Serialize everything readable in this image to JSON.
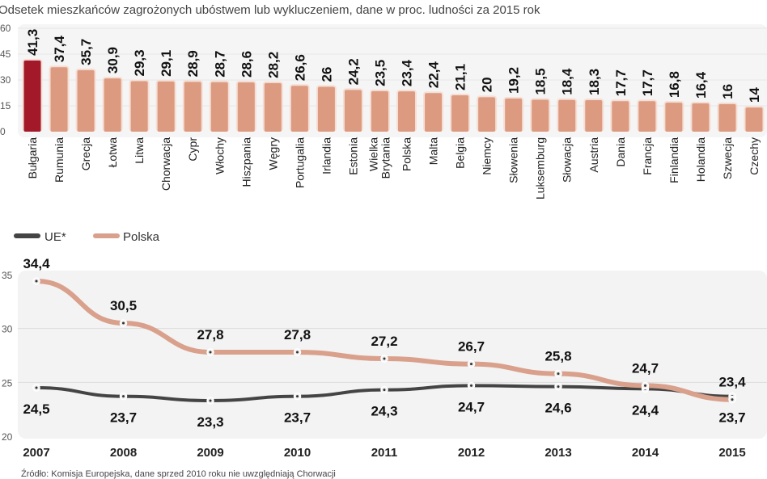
{
  "colors": {
    "highlight": "#a3192a",
    "bar": "#dc9a80",
    "polska_line": "#d9a08c",
    "ue_line": "#444444",
    "panel": "#f3f3f3"
  },
  "chart_data": [
    {
      "type": "bar",
      "title": "Odsetek mieszkańców zagrożonych ubóstwem lub wykluczeniem, dane w proc. ludności za 2015 rok",
      "categories": [
        "Bułgaria",
        "Rumunia",
        "Grecja",
        "Łotwa",
        "Litwa",
        "Chorwacja",
        "Cypr",
        "Włochy",
        "Hiszpania",
        "Węgry",
        "Portugalia",
        "Irlandia",
        "Estonia",
        "Wielka Brytania",
        "Polska",
        "Malta",
        "Belgia",
        "Niemcy",
        "Słowenia",
        "Luksemburg",
        "Słowacja",
        "Austria",
        "Dania",
        "Francja",
        "Finlandia",
        "Holandia",
        "Szwecja",
        "Czechy"
      ],
      "values": [
        41.3,
        37.4,
        35.7,
        30.9,
        29.3,
        29.1,
        28.9,
        28.7,
        28.6,
        28.2,
        26.6,
        26,
        24.2,
        23.5,
        23.4,
        22.4,
        21.1,
        20,
        19.2,
        18.5,
        18.4,
        18.3,
        17.7,
        17.7,
        16.8,
        16.4,
        16,
        14
      ],
      "value_labels": [
        "41,3",
        "37,4",
        "35,7",
        "30,9",
        "29,3",
        "29,1",
        "28,9",
        "28,7",
        "28,6",
        "28,2",
        "26,6",
        "26",
        "24,2",
        "23,5",
        "23,4",
        "22,4",
        "21,1",
        "20",
        "19,2",
        "18,5",
        "18,4",
        "18,3",
        "17,7",
        "17,7",
        "16,8",
        "16,4",
        "16",
        "14"
      ],
      "highlighted": "Bułgaria",
      "ylim": [
        0,
        60
      ],
      "yticks": [
        "0",
        "15",
        "30",
        "45",
        "60"
      ]
    },
    {
      "type": "line",
      "x": [
        "2007",
        "2008",
        "2009",
        "2010",
        "2011",
        "2012",
        "2013",
        "2014",
        "2015"
      ],
      "series": [
        {
          "name": "UE*",
          "values": [
            24.5,
            23.7,
            23.3,
            23.7,
            24.3,
            24.7,
            24.6,
            24.4,
            23.7
          ],
          "labels": [
            "24,5",
            "23,7",
            "23,3",
            "23,7",
            "24,3",
            "24,7",
            "24,6",
            "24,4",
            "23,7"
          ]
        },
        {
          "name": "Polska",
          "values": [
            34.4,
            30.5,
            27.8,
            27.8,
            27.2,
            26.7,
            25.8,
            24.7,
            23.4
          ],
          "labels": [
            "34,4",
            "30,5",
            "27,8",
            "27,8",
            "27,2",
            "26,7",
            "25,8",
            "24,7",
            "23,4"
          ]
        }
      ],
      "ylim": [
        20,
        35
      ],
      "yticks": [
        "20",
        "25",
        "30",
        "35"
      ],
      "grid": true,
      "legend": "top-left"
    }
  ],
  "source": "Źródło: Komisja Europejska, dane sprzed 2010 roku nie uwzględniają Chorwacji"
}
